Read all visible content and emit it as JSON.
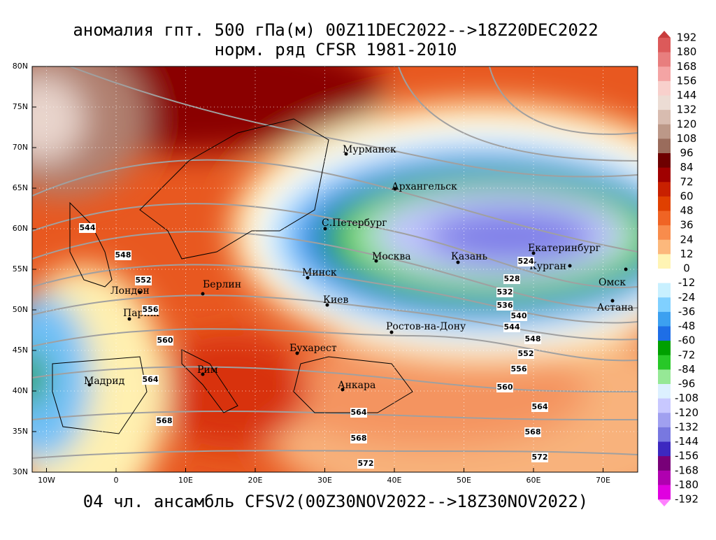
{
  "title": "аномалия гпт. 500 гПа(м) 00Z11DEC2022-->18Z20DEC2022",
  "subtitle": "норм. ряд CFSR 1981-2010",
  "footer": "04 чл. ансамбль CFSV2(00Z30NOV2022-->18Z30NOV2022)",
  "map": {
    "lat_labels": [
      "80N",
      "75N",
      "70N",
      "65N",
      "60N",
      "55N",
      "50N",
      "45N",
      "40N",
      "35N",
      "30N"
    ],
    "lon_labels": [
      "10W",
      "0",
      "10E",
      "20E",
      "30E",
      "40E",
      "50E",
      "60E",
      "70E"
    ],
    "cities": [
      "Мурманск",
      "Архангельск",
      "С.Петербург",
      "Москва",
      "Казань",
      "Екатеринбург",
      "Курган",
      "Омск",
      "Астана",
      "Минск",
      "Киев",
      "Берлин",
      "Лондон",
      "Париж",
      "Мадрид",
      "Рим",
      "Бухарест",
      "Анкара",
      "Ростов-на-Дону"
    ],
    "contour_labels": [
      544,
      548,
      552,
      556,
      560,
      564,
      568,
      564,
      568,
      572,
      524,
      528,
      532,
      536,
      540,
      544,
      548,
      552,
      556,
      560,
      564,
      568,
      572
    ]
  },
  "colorbar": {
    "levels": [
      192,
      180,
      168,
      156,
      144,
      132,
      120,
      108,
      96,
      84,
      72,
      60,
      48,
      36,
      24,
      12,
      0,
      -12,
      -24,
      -36,
      -48,
      -60,
      -72,
      -84,
      -96,
      -108,
      -120,
      -132,
      -144,
      -156,
      -168,
      -180,
      -192
    ],
    "colors": [
      "#c83c3c",
      "#dc5a5a",
      "#e87e7e",
      "#f4a4a4",
      "#f8d0cc",
      "#ecdcd4",
      "#d8bcb0",
      "#bc9888",
      "#9a6c5c",
      "#6e0000",
      "#a00000",
      "#c82000",
      "#e04000",
      "#f06424",
      "#f88c4c",
      "#fcb87c",
      "#fff4b4",
      "#ffffff",
      "#c8f0ff",
      "#80d0ff",
      "#3ca0f0",
      "#1e6ee6",
      "#00a000",
      "#28c828",
      "#96e896",
      "#dcf0ff",
      "#c8c8ff",
      "#a0a0f0",
      "#7878e0",
      "#3c28c0",
      "#780078",
      "#b000b0",
      "#e000e0",
      "#ff80ff"
    ]
  }
}
